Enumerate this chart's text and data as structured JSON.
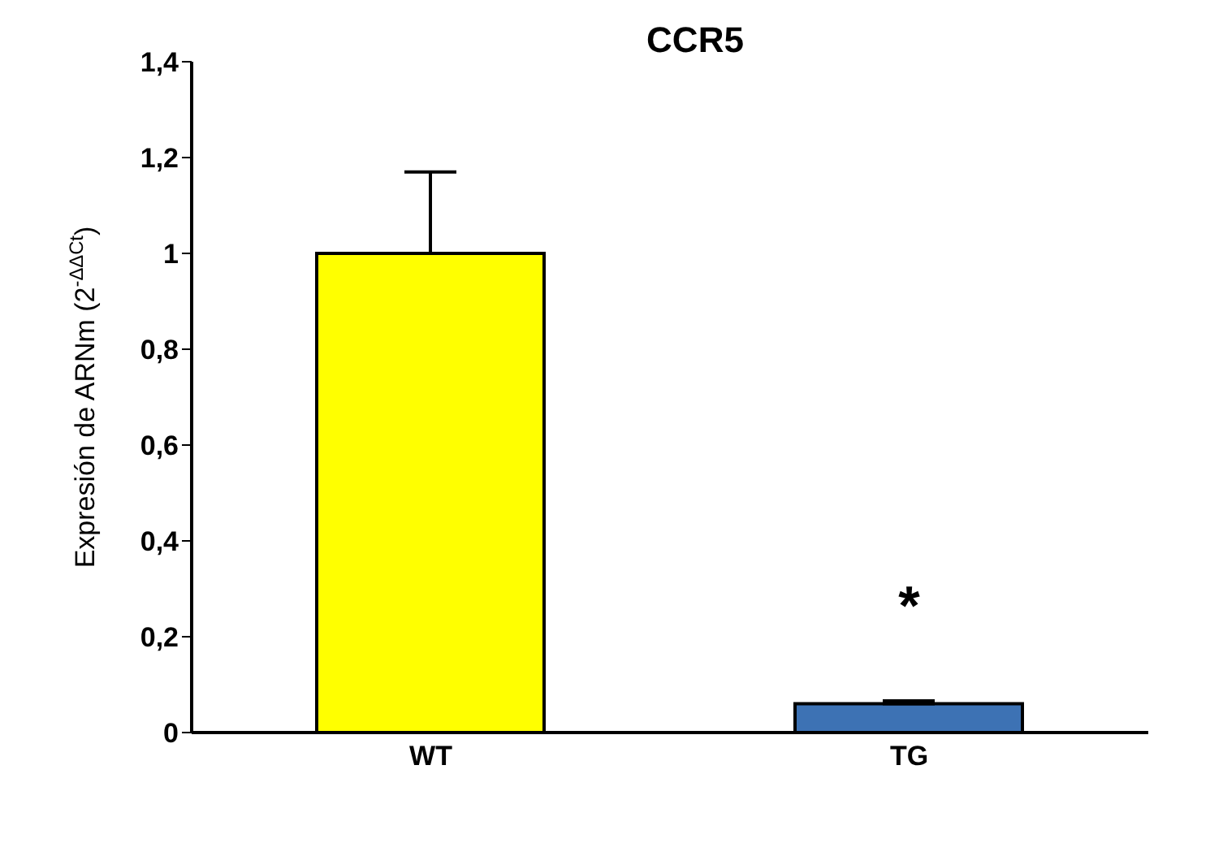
{
  "chart_data": {
    "type": "bar",
    "title": "CCR5",
    "ylabel": "Expresión de ARNm (2$^{-ΔΔCt}$)",
    "categories": [
      "WT",
      "TG"
    ],
    "values": [
      1.0,
      0.06
    ],
    "colors": [
      "#ffff00",
      "#3d72b4"
    ],
    "errors": [
      [
        1.0,
        1.17
      ],
      [
        0.06,
        0.066
      ]
    ],
    "ylim": [
      0,
      1.4
    ],
    "yticks": [
      0,
      {
        "value": 0.2,
        "label": "0,2"
      },
      {
        "value": 0.4,
        "label": "0,4"
      },
      {
        "value": 0.6,
        "label": "0,6"
      },
      {
        "value": 0.8,
        "label": "0,8"
      },
      1,
      {
        "value": 1.2,
        "label": "1,2"
      },
      {
        "value": 1.4,
        "label": "1,4"
      }
    ],
    "annotations": [
      "*"
    ],
    "grid": false,
    "legend": false
  }
}
